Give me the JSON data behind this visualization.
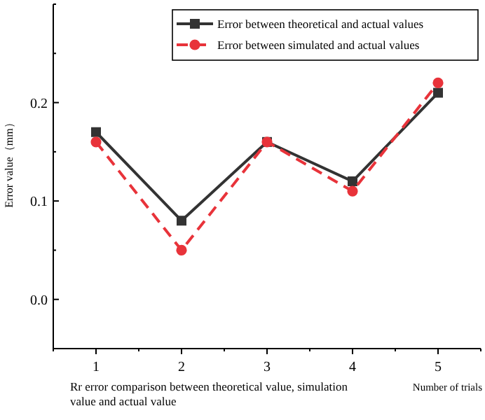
{
  "chart_data": {
    "type": "line",
    "xlabel": "Number of trials",
    "ylabel": "Error value（mm）",
    "annotations": [
      "Rr error comparison between theoretical value, simulation value and actual value"
    ],
    "x": [
      1,
      2,
      3,
      4,
      5
    ],
    "series": [
      {
        "name": "Error between theoretical and actual values",
        "color": "#333333",
        "values": [
          0.17,
          0.08,
          0.16,
          0.12,
          0.21
        ],
        "marker": "square",
        "line_style": "solid"
      },
      {
        "name": "Error between simulated and actual values",
        "color": "#e8333a",
        "values": [
          0.16,
          0.05,
          0.16,
          0.11,
          0.22
        ],
        "marker": "circle",
        "line_style": "dashed"
      }
    ],
    "xlim": [
      0.5,
      5.5
    ],
    "xticks": [
      1,
      2,
      3,
      4,
      5
    ],
    "ylim": [
      -0.05,
      0.3
    ],
    "yticks": [
      {
        "value": 0,
        "label": "0.0"
      },
      {
        "value": 0.1,
        "label": "0.1"
      },
      {
        "value": 0.2,
        "label": "0.2"
      }
    ],
    "grid": false,
    "legend": "top right"
  }
}
